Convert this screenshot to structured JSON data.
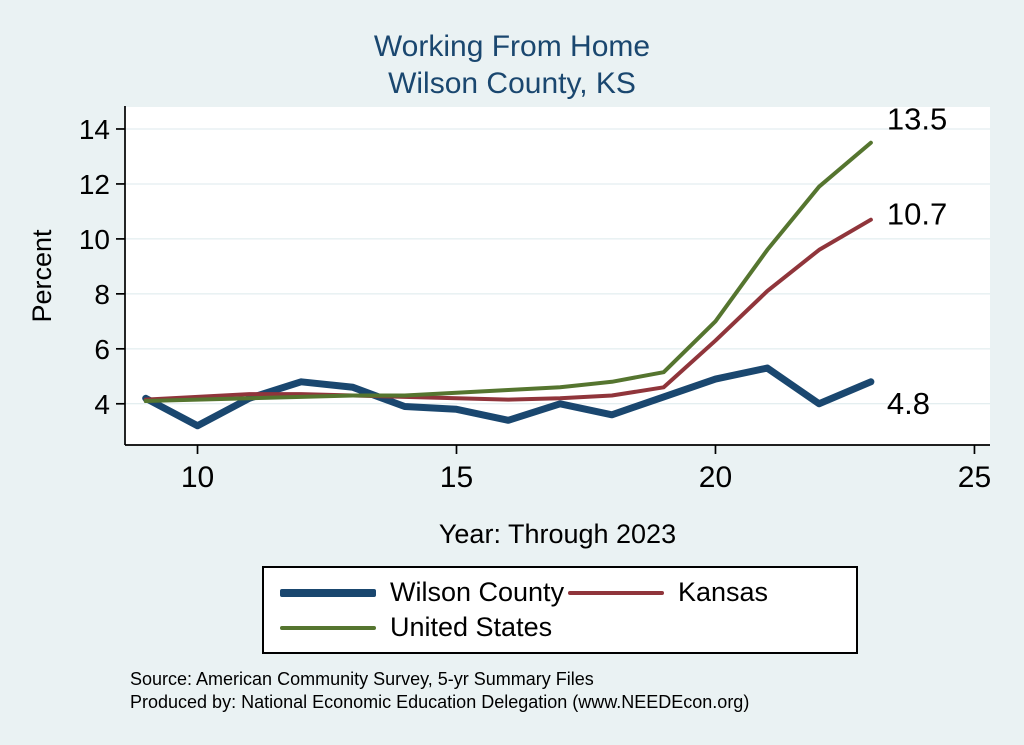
{
  "title": {
    "line1": "Working From Home",
    "line2": "Wilson County, KS",
    "color": "#1A476F"
  },
  "axes": {
    "x_title": "Year: Through 2023",
    "y_title": "Percent"
  },
  "footer": {
    "source": "Source: American Community Survey, 5-yr Summary Files",
    "produced": "Produced by: National Economic Education Delegation (www.NEEDEcon.org)"
  },
  "chart_data": {
    "type": "line",
    "title": "Working From Home",
    "subtitle": "Wilson County, KS",
    "xlabel": "Year: Through 2023",
    "ylabel": "Percent",
    "xlim": [
      8.6,
      25.3
    ],
    "ylim": [
      2.5,
      14.8
    ],
    "xticks": [
      10,
      15,
      20,
      25
    ],
    "yticks": [
      4,
      6,
      8,
      10,
      12,
      14
    ],
    "grid": true,
    "legend_position": "bottom",
    "x": [
      9,
      10,
      11,
      12,
      13,
      14,
      15,
      16,
      17,
      18,
      19,
      20,
      21,
      22,
      23
    ],
    "series": [
      {
        "name": "Wilson County",
        "color": "#1A476F",
        "width": 7,
        "values": [
          4.2,
          3.2,
          4.2,
          4.8,
          4.6,
          3.9,
          3.8,
          3.4,
          4.0,
          3.6,
          4.25,
          4.9,
          5.3,
          4.0,
          4.8
        ],
        "end_label": "4.8"
      },
      {
        "name": "Kansas",
        "color": "#90353B",
        "width": 4,
        "values": [
          4.15,
          4.25,
          4.35,
          4.35,
          4.3,
          4.25,
          4.2,
          4.15,
          4.2,
          4.3,
          4.6,
          6.3,
          8.1,
          9.6,
          10.7
        ],
        "end_label": "10.7"
      },
      {
        "name": "United States",
        "color": "#55752F",
        "width": 4,
        "values": [
          4.1,
          4.15,
          4.2,
          4.25,
          4.3,
          4.3,
          4.4,
          4.5,
          4.6,
          4.8,
          5.15,
          7.0,
          9.6,
          11.9,
          13.5
        ],
        "end_label": "13.5"
      }
    ]
  }
}
